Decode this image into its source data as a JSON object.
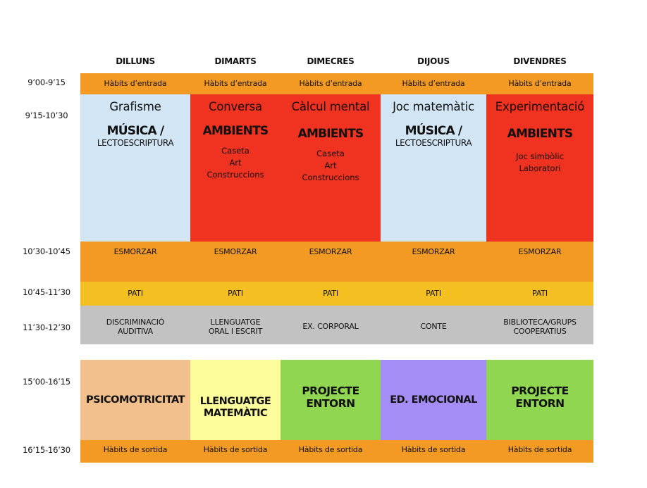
{
  "days": [
    "DILLUNS",
    "DIMARTS",
    "DIMECRES",
    "DIJOUS",
    "DIVENDRES"
  ],
  "times": {
    "t1": "9’00-9’15",
    "t2": "9’15-10’30",
    "t3": "10’30-10’45",
    "t4": "10’45-11’30",
    "t5": "11’30-12’30",
    "t6": "15’00-16’15",
    "t7": "16’15-16’30"
  },
  "entrada": "Hàbits d’entrada",
  "morning": [
    {
      "subject": "Grafisme",
      "title": "MÚSICA /",
      "sub": "LECTOESCRIPTURA",
      "items": []
    },
    {
      "subject": "Conversa",
      "title": "AMBIENTS",
      "sub": "",
      "items": [
        "Caseta",
        "Art",
        "Construccions"
      ]
    },
    {
      "subject": "Càlcul mental",
      "title": "AMBIENTS",
      "sub": "",
      "items": [
        "Caseta",
        "Art",
        "Construccions"
      ]
    },
    {
      "subject": "Joc matemàtic",
      "title": "MÚSICA /",
      "sub": "LECTOESCRIPTURA",
      "items": []
    },
    {
      "subject": "Experimentació",
      "title": "AMBIENTS",
      "sub": "",
      "items": [
        "Joc simbòlic",
        "Laboratori"
      ]
    }
  ],
  "esmorzar": "ESMORZAR",
  "pati": "PATI",
  "late_morning": [
    [
      "DISCRIMINACIÓ",
      "AUDITIVA"
    ],
    [
      "LLENGUATGE",
      "ORAL I ESCRIT"
    ],
    [
      "EX. CORPORAL"
    ],
    [
      "CONTE"
    ],
    [
      "BIBLIOTECA/GRUPS",
      "COOPERATIUS"
    ]
  ],
  "afternoon": [
    [
      "PSICOMOTRICITAT"
    ],
    [
      "LLENGUATGE",
      "MATEMÀTIC"
    ],
    [
      "PROJECTE",
      "ENTORN"
    ],
    [
      "ED. EMOCIONAL"
    ],
    [
      "PROJECTE",
      "ENTORN"
    ]
  ],
  "sortida": "Hàbits de sortida",
  "colors": {
    "orange": "#f29a24",
    "yellow": "#f4c021",
    "grey": "#c2c2c2",
    "lightblue": "#d2e5f4",
    "red": "#f03220",
    "peach": "#f2c08c",
    "paleyellow": "#fdfd9c",
    "green": "#91d650",
    "purple": "#a48df4"
  }
}
